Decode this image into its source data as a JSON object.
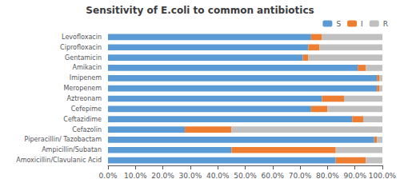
{
  "chart_data": {
    "type": "bar",
    "orientation": "horizontal",
    "stacked": true,
    "title": "Sensitivity of E.coli to common antibiotics",
    "categories": [
      "Levofloxacin",
      "Ciprofloxacin",
      "Gentamicin",
      "Amikacin",
      "Imipenem",
      "Meropenem",
      "Aztreonam",
      "Cefepime",
      "Ceftazidime",
      "Cefazolin",
      "Piperacillin/ Tazobactam",
      "Ampicillin/Subatan",
      "Amoxicillin/Clavulanic Acid"
    ],
    "series": [
      {
        "name": "S",
        "color": "#5B9BD5",
        "values": [
          74.0,
          73.0,
          71.0,
          91.0,
          98.0,
          98.0,
          78.0,
          74.0,
          89.0,
          28.0,
          97.0,
          45.0,
          83.0
        ]
      },
      {
        "name": "I",
        "color": "#ED7D31",
        "values": [
          4.0,
          4.0,
          2.0,
          3.0,
          1.0,
          1.0,
          8.0,
          6.0,
          4.0,
          17.0,
          1.0,
          38.0,
          11.0
        ]
      },
      {
        "name": "R",
        "color": "#C0C0C0",
        "values": [
          22.0,
          23.0,
          27.0,
          6.0,
          1.0,
          1.0,
          14.0,
          20.0,
          7.0,
          55.0,
          2.0,
          17.0,
          6.0
        ]
      }
    ],
    "xlim": [
      0,
      100
    ],
    "xticks": [
      {
        "value": 0,
        "label": "0.0%"
      },
      {
        "value": 10,
        "label": "10.0%"
      },
      {
        "value": 20,
        "label": "20.0%"
      },
      {
        "value": 30,
        "label": "30.0%"
      },
      {
        "value": 40,
        "label": "40.0%"
      },
      {
        "value": 50,
        "label": "50.0%"
      },
      {
        "value": 60,
        "label": "60.0%"
      },
      {
        "value": 70,
        "label": "70.0%"
      },
      {
        "value": 80,
        "label": "80.0%"
      },
      {
        "value": 90,
        "label": "90.0%"
      },
      {
        "value": 100,
        "label": "100.0%"
      }
    ],
    "grid": false,
    "legend": "upper right"
  }
}
